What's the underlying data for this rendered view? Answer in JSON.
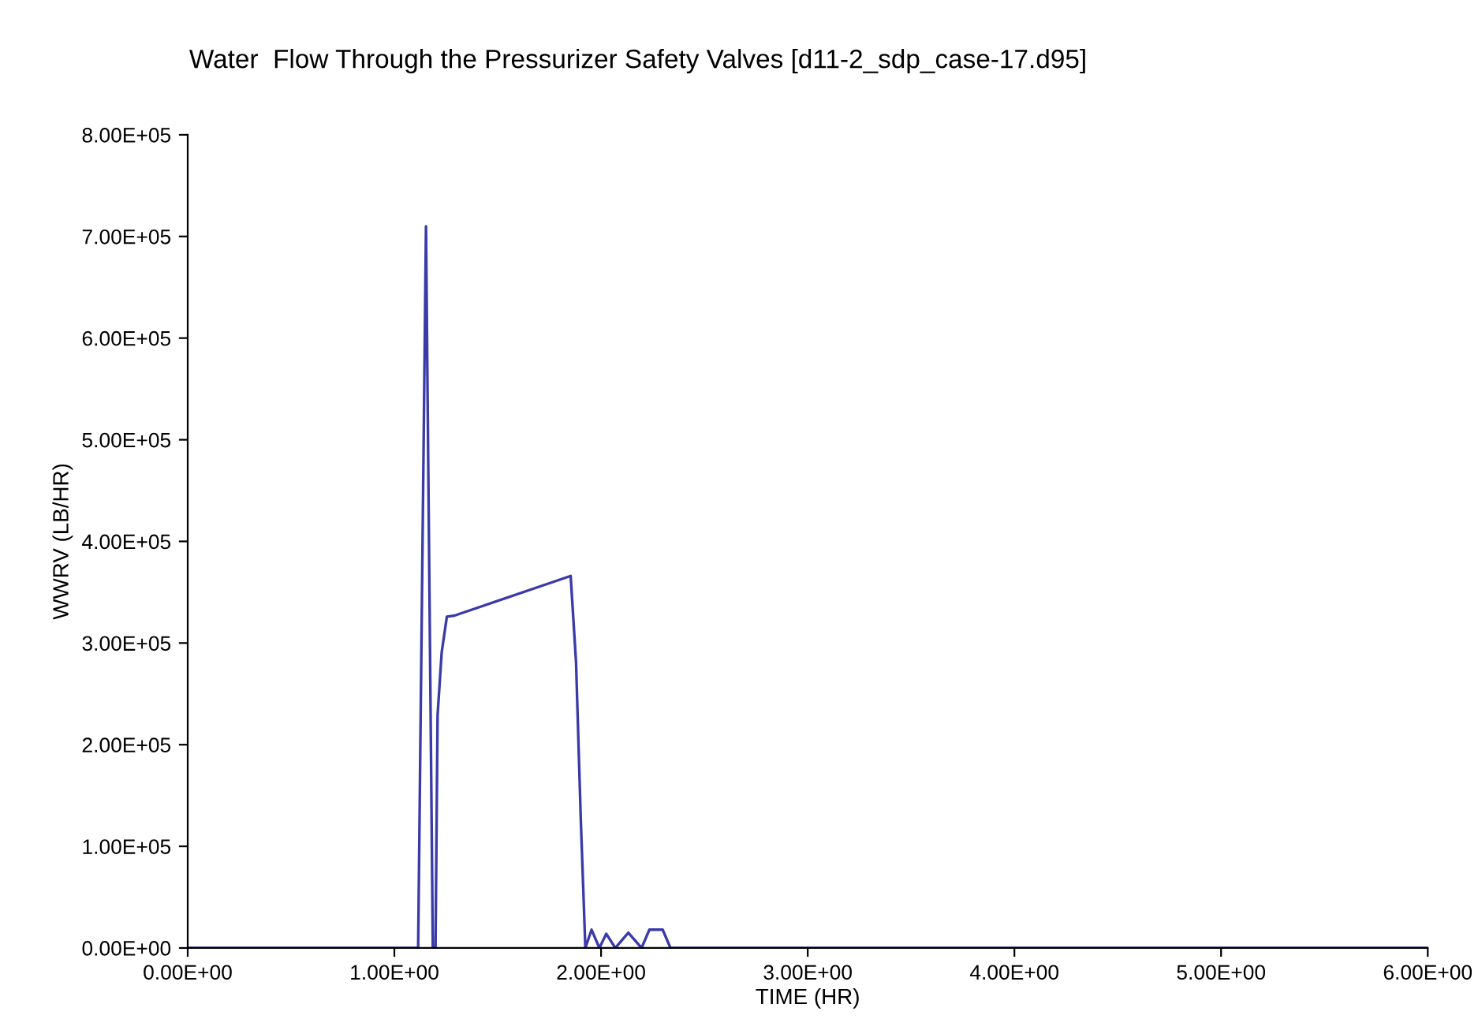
{
  "chart_data": {
    "type": "line",
    "title": "Water  Flow Through the Pressurizer Safety Valves [d11-2_sdp_case-17.d95]",
    "xlabel": "TIME (HR)",
    "ylabel": "WWRV (LB/HR)",
    "series": [
      {
        "color": "#3a3aa8",
        "x": [
          0,
          1.115,
          1.153,
          1.186,
          1.199,
          1.209,
          1.229,
          1.254,
          1.291,
          1.853,
          1.879,
          1.902,
          1.924,
          1.954,
          1.992,
          2.025,
          2.069,
          2.132,
          2.196,
          2.234,
          2.298,
          2.336,
          6.0
        ],
        "values": [
          0,
          0,
          710000,
          0,
          0,
          229000,
          291000,
          326000,
          327000,
          366000,
          281000,
          126000,
          0,
          18000,
          0,
          14000,
          0,
          15000,
          0,
          18000,
          18000,
          0,
          0
        ]
      }
    ],
    "xlim": [
      0,
      6
    ],
    "ylim": [
      0,
      800000
    ],
    "xticks": [
      {
        "value": 0,
        "label": "0.00E+00"
      },
      {
        "value": 1,
        "label": "1.00E+00"
      },
      {
        "value": 2,
        "label": "2.00E+00"
      },
      {
        "value": 3,
        "label": "3.00E+00"
      },
      {
        "value": 4,
        "label": "4.00E+00"
      },
      {
        "value": 5,
        "label": "5.00E+00"
      },
      {
        "value": 6,
        "label": "6.00E+00"
      }
    ],
    "yticks": [
      {
        "value": 0,
        "label": "0.00E+00"
      },
      {
        "value": 100000,
        "label": "1.00E+05"
      },
      {
        "value": 200000,
        "label": "2.00E+05"
      },
      {
        "value": 300000,
        "label": "3.00E+05"
      },
      {
        "value": 400000,
        "label": "4.00E+05"
      },
      {
        "value": 500000,
        "label": "5.00E+05"
      },
      {
        "value": 600000,
        "label": "6.00E+05"
      },
      {
        "value": 700000,
        "label": "7.00E+05"
      },
      {
        "value": 800000,
        "label": "8.00E+05"
      }
    ],
    "grid": false,
    "legend": false,
    "marker": "none",
    "line_style": "solid"
  }
}
